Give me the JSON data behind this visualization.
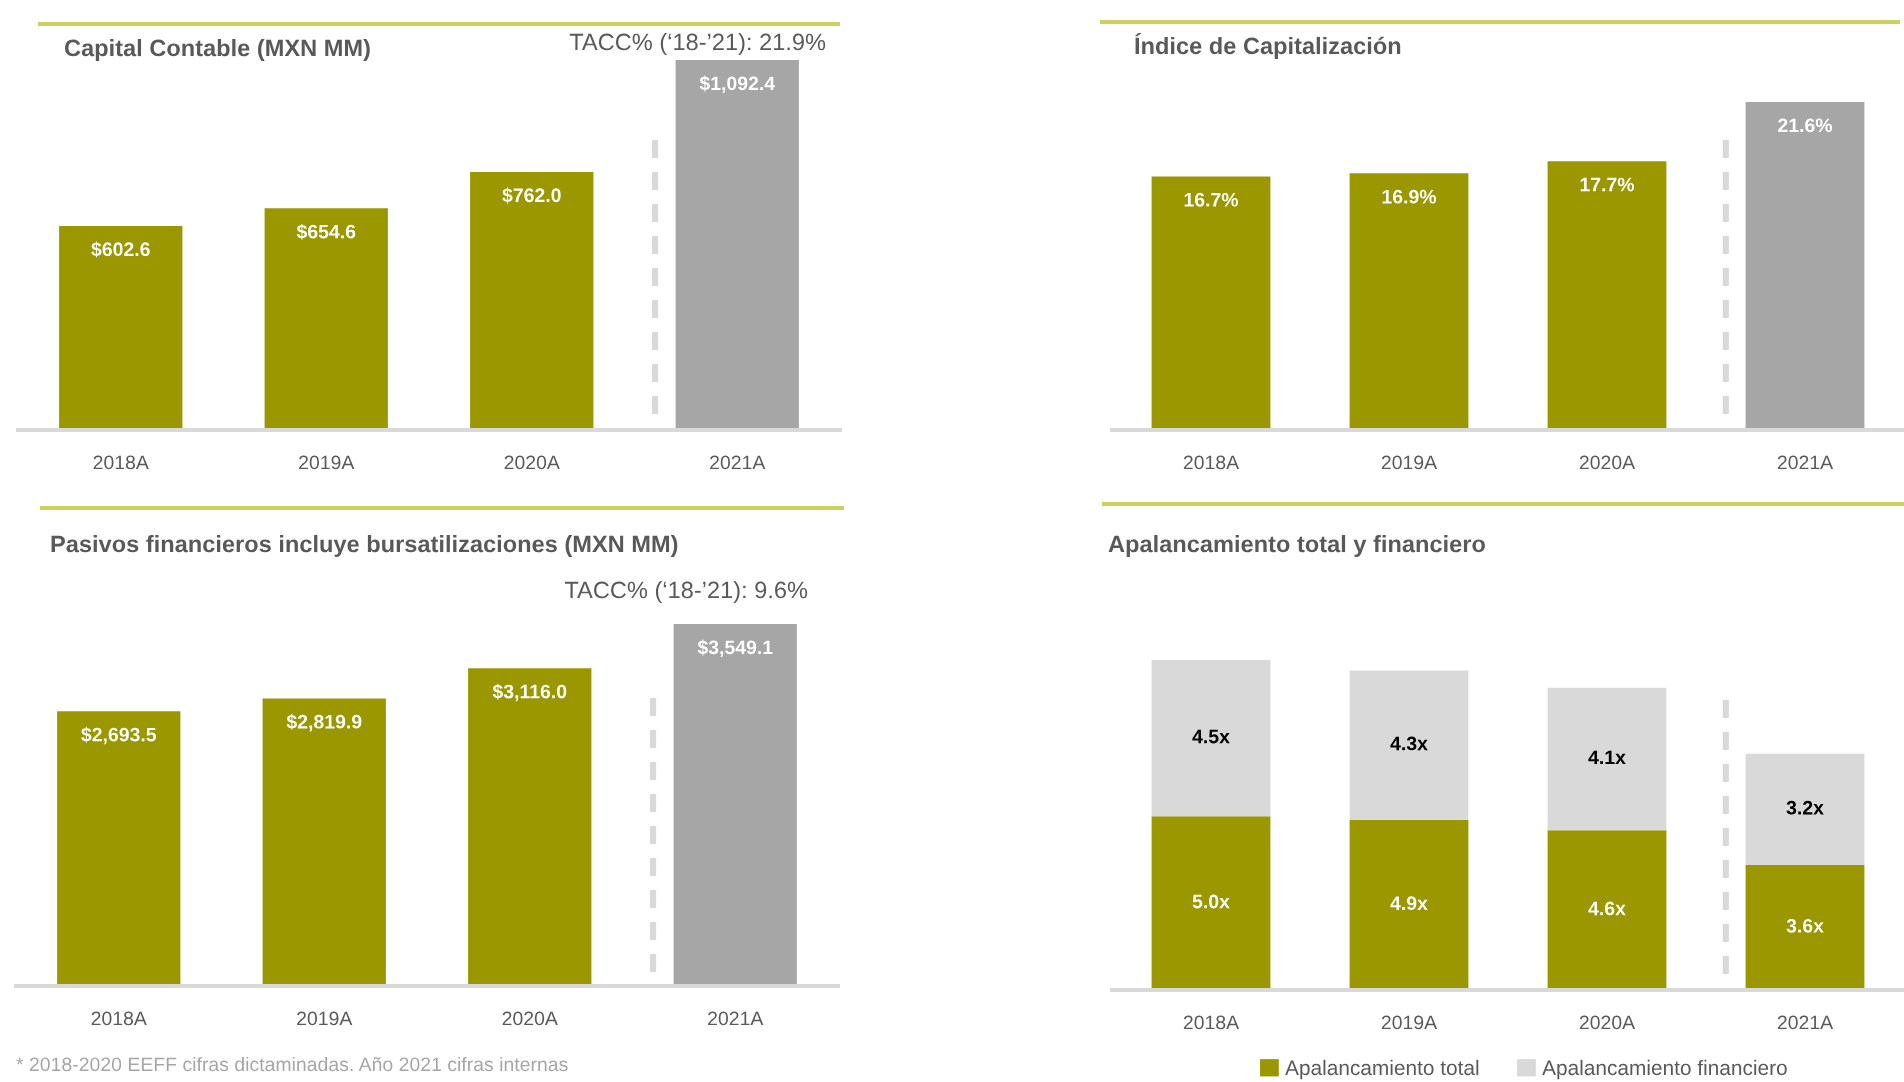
{
  "chart_data": [
    {
      "type": "bar",
      "title": "Capital Contable (MXN MM)",
      "categories": [
        "2018A",
        "2019A",
        "2020A",
        "2021A"
      ],
      "values": [
        602.6,
        654.6,
        762.0,
        1092.4
      ],
      "colors": [
        "#9a9700",
        "#9a9700",
        "#9a9700",
        "#a6a6a6"
      ],
      "value_labels": [
        "$602.6",
        "$654.6",
        "$762.0",
        "$1,092.4"
      ],
      "tick_labels": "x",
      "annotations": [
        "TACC% (‘18-’21): 21.9%"
      ]
    },
    {
      "type": "bar",
      "title": "Índice de Capitalización",
      "categories": [
        "2018A",
        "2019A",
        "2020A",
        "2021A"
      ],
      "values": [
        16.7,
        16.9,
        17.7,
        21.6
      ],
      "colors": [
        "#9a9700",
        "#9a9700",
        "#9a9700",
        "#a6a6a6"
      ],
      "value_labels": [
        "16.7%",
        "16.9%",
        "17.7%",
        "21.6%"
      ],
      "tick_labels": "x"
    },
    {
      "type": "bar",
      "title": "Pasivos financieros incluye bursatilizaciones (MXN MM)",
      "categories": [
        "2018A",
        "2019A",
        "2020A",
        "2021A"
      ],
      "values": [
        2693.5,
        2819.9,
        3116.0,
        3549.1
      ],
      "colors": [
        "#9a9700",
        "#9a9700",
        "#9a9700",
        "#a6a6a6"
      ],
      "value_labels": [
        "$2,693.5",
        "$2,819.9",
        "$3,116.0",
        "$3,549.1"
      ],
      "tick_labels": "x",
      "annotations": [
        "TACC% (‘18-’21): 9.6%",
        "* 2018-2020 EEFF cifras dictaminadas. Año 2021 cifras internas"
      ]
    },
    {
      "type": "bar",
      "title": "Apalancamiento total y financiero",
      "categories": [
        "2018A",
        "2019A",
        "2020A",
        "2021A"
      ],
      "stacked": true,
      "series": [
        {
          "name": "Apalancamiento total",
          "color": "#9a9700",
          "values": [
            5.0,
            4.9,
            4.6,
            3.6
          ],
          "value_labels": [
            "5.0x",
            "4.9x",
            "4.6x",
            "3.6x"
          ]
        },
        {
          "name": "Apalancamiento financiero",
          "color": "#d9d9d9",
          "values": [
            4.5,
            4.3,
            4.1,
            3.2
          ],
          "value_labels": [
            "4.5x",
            "4.3x",
            "4.1x",
            "3.2x"
          ]
        }
      ],
      "tick_labels": "x",
      "legend": "bottom"
    }
  ]
}
